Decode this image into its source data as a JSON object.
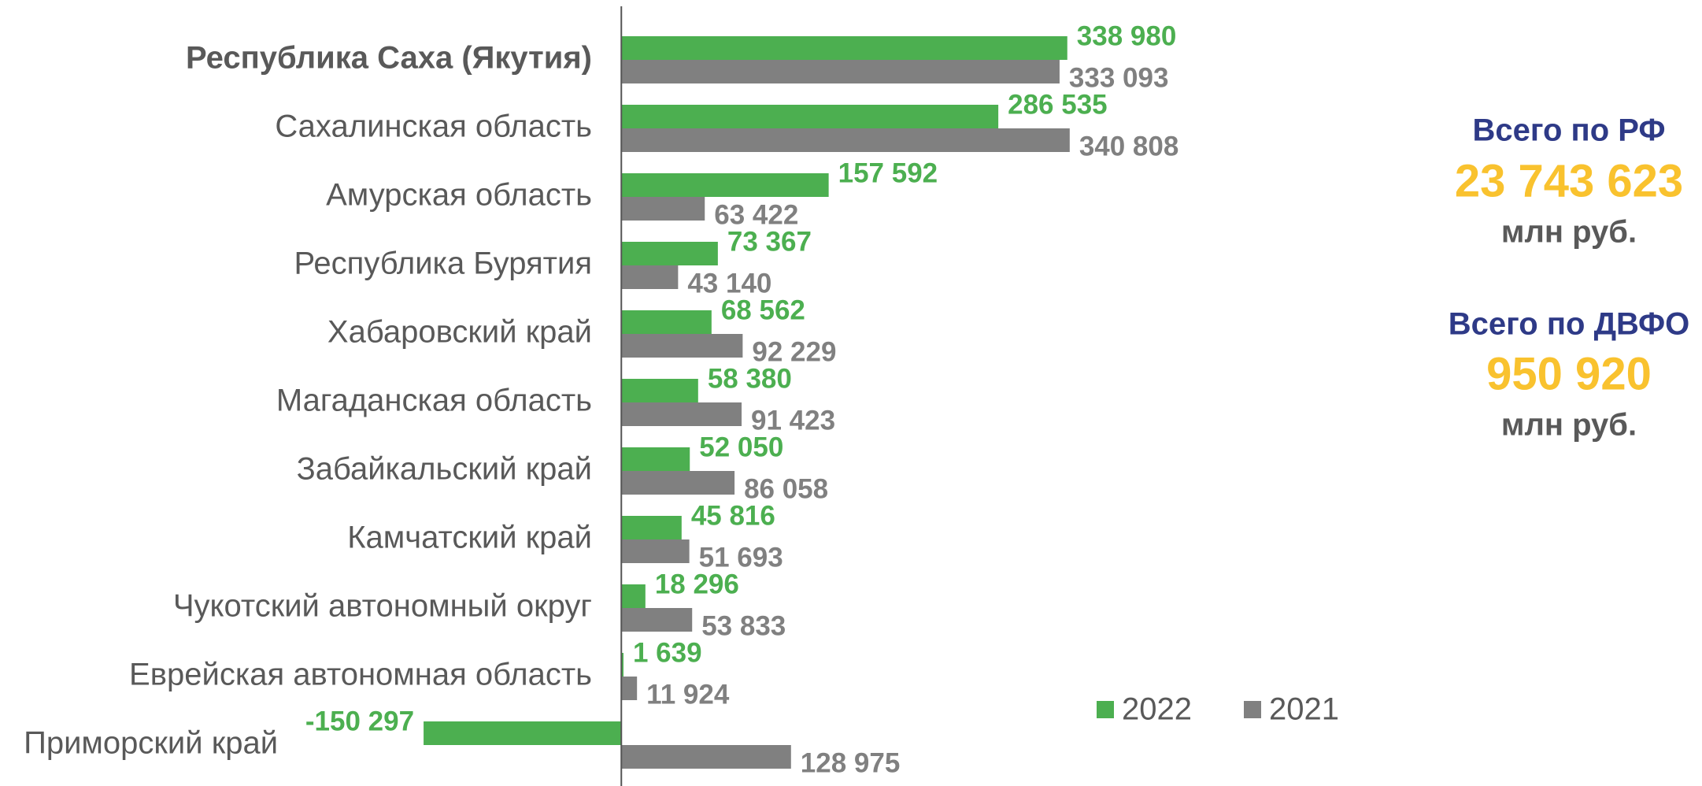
{
  "chart_data": {
    "type": "hbar",
    "categories": [
      "Республика Саха (Якутия)",
      "Сахалинская область",
      "Амурская область",
      "Республика Бурятия",
      "Хабаровский край",
      "Магаданская область",
      "Забайкальский край",
      "Камчатский край",
      "Чукотский автономный округ",
      "Еврейская автономная область",
      "Приморский край"
    ],
    "series": [
      {
        "name": "2022",
        "color": "#4caf50",
        "values": [
          338980,
          286535,
          157592,
          73367,
          68562,
          58380,
          52050,
          45816,
          18296,
          1639,
          -150297
        ],
        "value_labels": [
          "338 980",
          "286 535",
          "157 592",
          "73 367",
          "68 562",
          "58 380",
          "52 050",
          "45 816",
          "18 296",
          "1 639",
          "-150 297"
        ]
      },
      {
        "name": "2021",
        "color": "#808080",
        "values": [
          333093,
          340808,
          63422,
          43140,
          92229,
          91423,
          86058,
          51693,
          53833,
          11924,
          128975
        ],
        "value_labels": [
          "333 093",
          "340 808",
          "63 422",
          "43 140",
          "92 229",
          "91 423",
          "86 058",
          "51 693",
          "53 833",
          "11 924",
          "128 975"
        ]
      }
    ],
    "xlim": [
      -200000,
      600000
    ],
    "legend": "bottom-right",
    "summary": [
      {
        "label": "Всего по РФ",
        "value": "23 743 623",
        "unit": "млн руб."
      },
      {
        "label": "Всего по ДВФО",
        "value": "950 920",
        "unit": "млн руб."
      }
    ]
  }
}
